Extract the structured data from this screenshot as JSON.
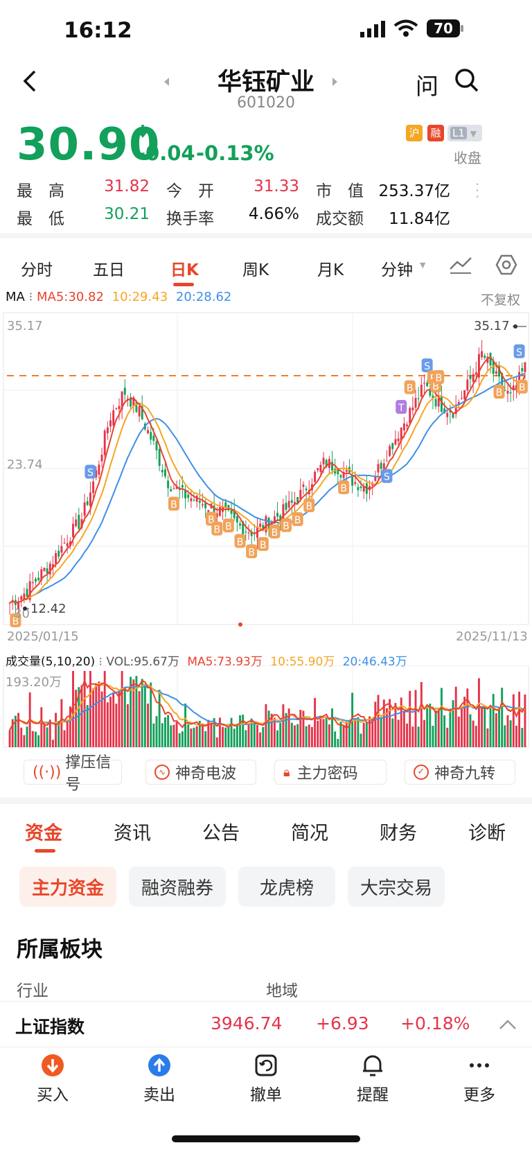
{
  "status": {
    "time": "16:12",
    "battery": "70"
  },
  "header": {
    "name": "华钰矿业",
    "code": "601020",
    "ask": "问"
  },
  "quote": {
    "price": "30.90",
    "change": "-0.04",
    "change_pct": "-0.13%",
    "badges": [
      "沪",
      "融",
      "L1"
    ],
    "market_status": "收盘",
    "stats": [
      {
        "label": "最　高",
        "value": "31.82"
      },
      {
        "label": "今　开",
        "value": "31.33"
      },
      {
        "label": "市　值",
        "value": "253.37亿"
      },
      {
        "label": "最　低",
        "value": "30.21"
      },
      {
        "label": "换手率",
        "value": "4.66%"
      },
      {
        "label": "成交额",
        "value": "11.84亿"
      }
    ]
  },
  "chart_tabs": [
    "分时",
    "五日",
    "日K",
    "周K",
    "月K",
    "分钟"
  ],
  "ma": {
    "label": "MA",
    "ma5": "MA5:30.82",
    "ma10": "10:29.43",
    "ma20": "20:28.62",
    "adjust": "不复权"
  },
  "kline": {
    "y_top": "35.17",
    "y_mid": "23.74",
    "y_low_label": "12.42",
    "y_low_partial": "30",
    "high_marker": "35.17",
    "date_start": "2025/01/15",
    "date_end": "2025/11/13"
  },
  "volume": {
    "title": "成交量(5,10,20)",
    "vol": "VOL:95.67万",
    "ma5": "MA5:73.93万",
    "ma10": "10:55.90万",
    "ma20": "20:46.43万",
    "max": "193.20万"
  },
  "signals": [
    "撑压信号",
    "神奇电波",
    "主力密码",
    "神奇九转"
  ],
  "info_tabs": [
    "资金",
    "资讯",
    "公告",
    "简况",
    "财务",
    "诊断"
  ],
  "fund_chips": [
    "主力资金",
    "融资融券",
    "龙虎榜",
    "大宗交易"
  ],
  "sector": {
    "title": "所属板块",
    "industry": "行业",
    "region": "地域"
  },
  "index": {
    "name": "上证指数",
    "value": "3946.74",
    "change": "+6.93",
    "pct": "+0.18%"
  },
  "bottom_nav": [
    "买入",
    "卖出",
    "撤单",
    "提醒",
    "更多"
  ],
  "colors": {
    "up": "#e5334a",
    "down": "#12a05a",
    "ma5": "#e8432f",
    "ma10": "#f5a623",
    "ma20": "#3d8fe6",
    "accent": "#e8462a"
  },
  "chart_data": {
    "type": "candlestick",
    "x_range": [
      "2025/01/15",
      "2025/11/13"
    ],
    "ylim": [
      12.42,
      35.17
    ],
    "reference_line": 31.82,
    "close_approx": [
      12.5,
      13.2,
      14.5,
      15.8,
      17.5,
      19.0,
      22.5,
      27.0,
      29.0,
      27.5,
      25.0,
      22.0,
      21.0,
      20.5,
      20.0,
      19.5,
      18.5,
      18.0,
      18.8,
      19.5,
      20.5,
      22.0,
      23.5,
      23.0,
      22.0,
      21.5,
      23.5,
      25.5,
      27.5,
      29.5,
      28.0,
      27.5,
      29.5,
      32.0,
      30.0,
      28.5,
      30.9
    ]
  }
}
